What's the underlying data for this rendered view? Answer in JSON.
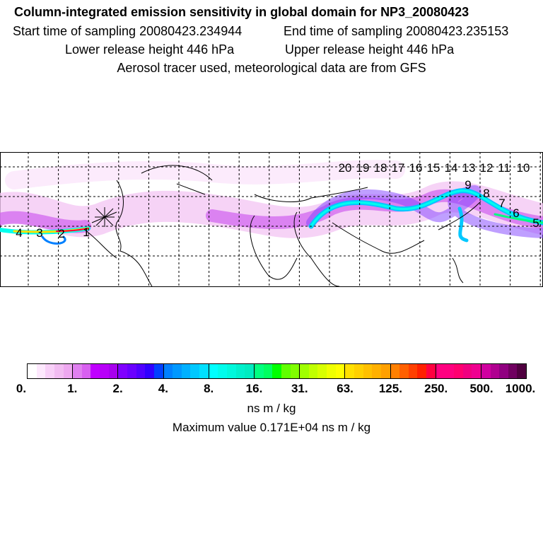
{
  "header": {
    "title": "Column-integrated emission sensitivity in global domain for NP3_20080423",
    "start_time": "Start time of sampling 20080423.234944",
    "end_time": "End time of sampling 20080423.235153",
    "lower_release": "Lower release height  446 hPa",
    "upper_release": "Upper release height  446 hPa",
    "info": "Aerosol tracer used, meteorological data are from GFS"
  },
  "map": {
    "trajectory_labels_left": [
      "4",
      "3",
      "2",
      "1"
    ],
    "trajectory_labels_right": [
      "20",
      "19",
      "18",
      "17",
      "16",
      "15",
      "14",
      "13",
      "12",
      "11",
      "10",
      "9",
      "8",
      "7",
      "6",
      "5"
    ]
  },
  "colorbar": {
    "tick_labels": [
      "0.",
      "1.",
      "2.",
      "4.",
      "8.",
      "16.",
      "31.",
      "63.",
      "125.",
      "250.",
      "500.",
      "1000."
    ],
    "segments": [
      [
        "#ffffff",
        "#fde8fd",
        "#f8d0f8",
        "#f2bcf2",
        "#eea8f0"
      ],
      [
        "#e080f0",
        "#d860f0",
        "#c000ff",
        "#b800f8",
        "#a800ee"
      ],
      [
        "#8000ff",
        "#6a00ff",
        "#5000ff",
        "#3000ff",
        "#0040ff"
      ],
      [
        "#0080ff",
        "#0098ff",
        "#00b0ff",
        "#00c8ff",
        "#00e0ff"
      ],
      [
        "#00ffff",
        "#00fcec",
        "#00f8dc",
        "#00f0cc",
        "#00ecc0"
      ],
      [
        "#00ff80",
        "#00ff60",
        "#00ff00",
        "#60ff00",
        "#80ff00"
      ],
      [
        "#a0ff00",
        "#c0ff00",
        "#d8ff00",
        "#f0ff00",
        "#ffff00"
      ],
      [
        "#ffe000",
        "#ffd000",
        "#ffc000",
        "#ffb000",
        "#ffa000"
      ],
      [
        "#ff8000",
        "#ff6000",
        "#ff4000",
        "#ff2000",
        "#ff0040"
      ],
      [
        "#ff0080",
        "#ff0080",
        "#ff0070",
        "#f00080",
        "#f00090"
      ],
      [
        "#d000a0",
        "#b00090",
        "#900080",
        "#700060",
        "#500040"
      ]
    ],
    "units": "ns m / kg",
    "maximum": "Maximum value  0.171E+04 ns m / kg"
  }
}
